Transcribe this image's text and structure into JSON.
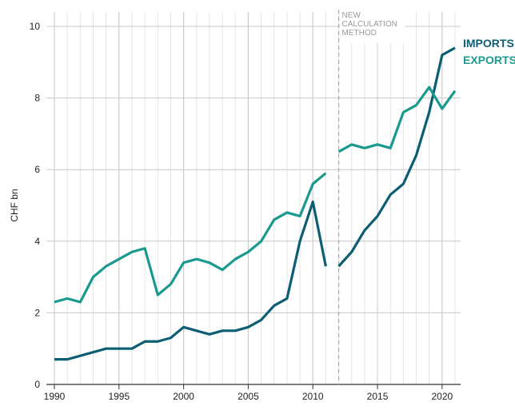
{
  "chart_data": {
    "type": "line",
    "y_label": "CHF bn",
    "annotation": [
      "NEW",
      "CALCULATION",
      "METHOD"
    ],
    "method_change": 2012,
    "x": [
      1990,
      1991,
      1992,
      1993,
      1994,
      1995,
      1996,
      1997,
      1998,
      1999,
      2000,
      2001,
      2002,
      2003,
      2004,
      2005,
      2006,
      2007,
      2008,
      2009,
      2010,
      2011,
      2012,
      2013,
      2014,
      2015,
      2016,
      2017,
      2018,
      2019,
      2020,
      2021
    ],
    "series": [
      {
        "name": "IMPORTS",
        "color": "#0d5e73",
        "values": [
          0.7,
          0.7,
          0.8,
          0.9,
          1.0,
          1.0,
          1.0,
          1.2,
          1.2,
          1.3,
          1.6,
          1.5,
          1.4,
          1.5,
          1.5,
          1.6,
          1.8,
          2.2,
          2.4,
          4.0,
          5.1,
          3.3,
          3.3,
          3.7,
          4.3,
          4.7,
          5.3,
          5.6,
          6.4,
          7.6,
          9.2,
          9.4
        ]
      },
      {
        "name": "EXPORTS",
        "color": "#1a9a8e",
        "values": [
          2.3,
          2.4,
          2.3,
          3.0,
          3.3,
          3.5,
          3.7,
          3.8,
          2.5,
          2.8,
          3.4,
          3.5,
          3.4,
          3.2,
          3.5,
          3.7,
          4.0,
          4.6,
          4.8,
          4.7,
          5.6,
          5.9,
          6.5,
          6.7,
          6.6,
          6.7,
          6.6,
          7.6,
          7.8,
          8.3,
          7.7,
          8.2
        ]
      }
    ],
    "xlim": [
      1990,
      2021
    ],
    "xticks": [
      1990,
      1995,
      2000,
      2005,
      2010,
      2015,
      2020
    ],
    "ylim": [
      0,
      10
    ],
    "yticks": [
      0,
      2,
      4,
      6,
      8,
      10
    ],
    "grid": true
  }
}
